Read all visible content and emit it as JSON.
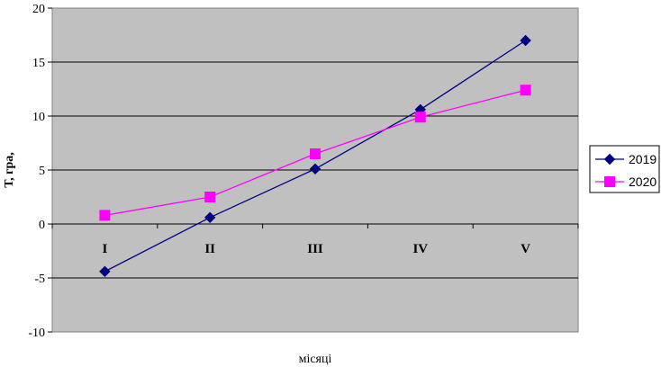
{
  "chart_data": {
    "type": "line",
    "categories": [
      "I",
      "II",
      "III",
      "IV",
      "V"
    ],
    "series": [
      {
        "name": "2019",
        "values": [
          -4.4,
          0.6,
          5.1,
          10.6,
          17.0
        ],
        "color": "#000080",
        "marker": "diamond"
      },
      {
        "name": "2020",
        "values": [
          0.8,
          2.5,
          6.5,
          9.9,
          12.4
        ],
        "color": "#ff00ff",
        "marker": "square"
      }
    ],
    "title": "",
    "xlabel": "місяці",
    "ylabel": "Т, гра,",
    "ylim": [
      -10,
      20
    ],
    "yticks": [
      "20",
      "15",
      "10",
      "5",
      "0",
      "-5",
      "-10"
    ],
    "grid": true,
    "plot_background": "#c0c0c0",
    "legend_position": "right"
  }
}
